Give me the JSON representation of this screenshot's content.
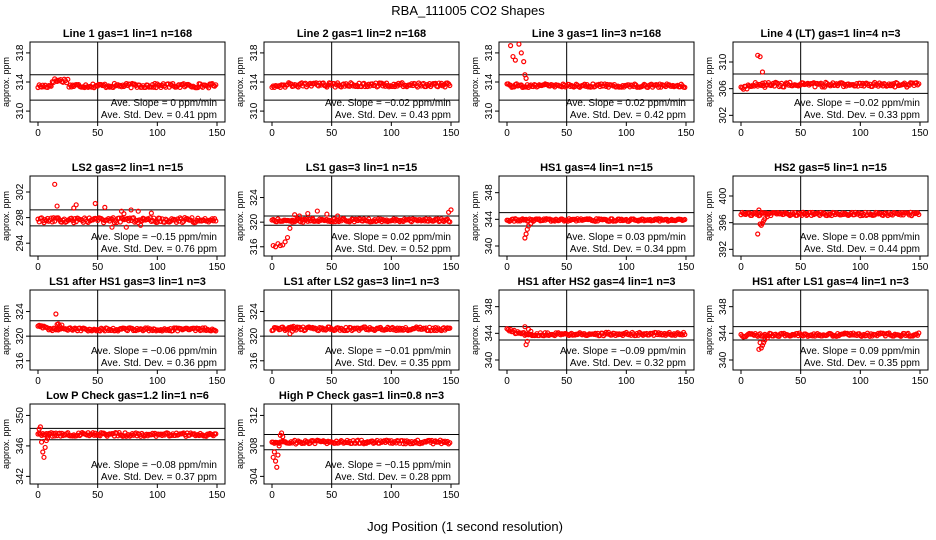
{
  "title": "RBA_111005  CO2 Shapes",
  "xlabel": "Jog Position (1 second resolution)",
  "colors": {
    "points": "#ff0000",
    "axes": "#000000"
  },
  "chart_data": [
    {
      "type": "scatter",
      "title": "Line 1 gas=1 lin=1 n=168",
      "ylabel": "approx. ppm",
      "xlim": [
        0,
        150
      ],
      "xticks": [
        0,
        50,
        100,
        150
      ],
      "ylim": [
        308.5,
        319.5
      ],
      "yticks": [
        310,
        314,
        318
      ],
      "hlines": [
        315,
        311.5
      ],
      "vline": 50,
      "start": 313.4,
      "bump": [
        12,
        25,
        314.2
      ],
      "base": 313.5,
      "noise": 0.3,
      "outliers": [],
      "slope_label": "Ave. Slope = 0 ppm/min",
      "sd_label": "Ave. Std. Dev. = 0.41 ppm"
    },
    {
      "type": "scatter",
      "title": "Line 2 gas=1 lin=2 n=168",
      "ylabel": "approx. ppm",
      "xlim": [
        0,
        150
      ],
      "xticks": [
        0,
        50,
        100,
        150
      ],
      "ylim": [
        308.5,
        319.5
      ],
      "yticks": [
        310,
        314,
        318
      ],
      "hlines": [
        315,
        311.5
      ],
      "vline": 50,
      "start": 313.5,
      "bump": null,
      "base": 313.6,
      "noise": 0.3,
      "outliers": [],
      "slope_label": "Ave. Slope = −0.02 ppm/min",
      "sd_label": "Ave. Std. Dev. = 0.43 ppm"
    },
    {
      "type": "scatter",
      "title": "Line 3 gas=1 lin=3 n=168",
      "ylabel": "approx. ppm",
      "xlim": [
        0,
        150
      ],
      "xticks": [
        0,
        50,
        100,
        150
      ],
      "ylim": [
        308.5,
        319.5
      ],
      "yticks": [
        310,
        314,
        318
      ],
      "hlines": [
        315,
        311.5
      ],
      "vline": 50,
      "start": 313.5,
      "bump": null,
      "base": 313.5,
      "noise": 0.25,
      "outliers": [
        [
          3,
          319
        ],
        [
          5,
          317.5
        ],
        [
          7,
          317
        ],
        [
          10,
          319.2
        ],
        [
          12,
          318
        ],
        [
          14,
          316.8
        ],
        [
          15,
          315
        ],
        [
          16,
          314.5
        ]
      ],
      "slope_label": "Ave. Slope = 0.02 ppm/min",
      "sd_label": "Ave. Std. Dev. = 0.42 ppm"
    },
    {
      "type": "scatter",
      "title": "Line 4 (LT) gas=1 lin=4 n=3",
      "ylabel": "approx. ppm",
      "xlim": [
        0,
        150
      ],
      "xticks": [
        0,
        50,
        100,
        150
      ],
      "ylim": [
        301,
        313
      ],
      "yticks": [
        302,
        306,
        310
      ],
      "hlines": [
        308.2,
        305.3
      ],
      "vline": 50,
      "start": 306,
      "bump": null,
      "base": 306.6,
      "noise": 0.35,
      "outliers": [
        [
          14,
          311
        ],
        [
          16,
          310.8
        ],
        [
          18,
          308.5
        ],
        [
          20,
          306.2
        ]
      ],
      "slope_label": "Ave. Slope = −0.02 ppm/min",
      "sd_label": "Ave. Std. Dev. = 0.33 ppm"
    },
    {
      "type": "scatter",
      "title": "LS2 gas=2 lin=1 n=15",
      "ylabel": "approx. ppm",
      "xlim": [
        0,
        150
      ],
      "xticks": [
        0,
        50,
        100,
        150
      ],
      "ylim": [
        292,
        304.5
      ],
      "yticks": [
        294,
        298,
        302
      ],
      "hlines": [
        299.2,
        296.7
      ],
      "vline": 50,
      "start": 297.6,
      "bump": null,
      "base": 297.6,
      "noise": 0.4,
      "outliers": [
        [
          14,
          303.2
        ],
        [
          16,
          299.8
        ],
        [
          30,
          299.5
        ],
        [
          32,
          300
        ],
        [
          48,
          300.2
        ],
        [
          56,
          299.6
        ],
        [
          62,
          296.5
        ],
        [
          70,
          299
        ],
        [
          72,
          298.6
        ],
        [
          74,
          296.5
        ],
        [
          78,
          299.2
        ],
        [
          84,
          299
        ],
        [
          86,
          296.8
        ],
        [
          88,
          297.9
        ],
        [
          95,
          298.7
        ]
      ],
      "slope_label": "Ave. Slope = −0.15 ppm/min",
      "sd_label": "Ave. Std. Dev. = 0.76 ppm"
    },
    {
      "type": "scatter",
      "title": "LS1 gas=3 lin=1 n=15",
      "ylabel": "approx. ppm",
      "xlim": [
        0,
        150
      ],
      "xticks": [
        0,
        50,
        100,
        150
      ],
      "ylim": [
        314.5,
        327.5
      ],
      "yticks": [
        316,
        320,
        324
      ],
      "hlines": [
        321,
        319.5
      ],
      "vline": 50,
      "start": 320.3,
      "bump": null,
      "base": 320.3,
      "noise": 0.25,
      "outliers": [
        [
          1,
          316.2
        ],
        [
          3,
          316
        ],
        [
          5,
          316.5
        ],
        [
          7,
          316.2
        ],
        [
          9,
          316.3
        ],
        [
          11,
          316.8
        ],
        [
          13,
          317.5
        ],
        [
          15,
          319
        ],
        [
          17,
          320
        ],
        [
          19,
          321.2
        ],
        [
          21,
          320.5
        ],
        [
          23,
          321
        ],
        [
          26,
          320
        ],
        [
          30,
          321.4
        ],
        [
          34,
          320.6
        ],
        [
          38,
          321.8
        ],
        [
          42,
          320.4
        ],
        [
          46,
          321.3
        ],
        [
          50,
          320.2
        ],
        [
          55,
          321
        ],
        [
          60,
          320.6
        ],
        [
          148,
          321.6
        ],
        [
          150,
          322
        ]
      ],
      "slope_label": "Ave. Slope = 0.02 ppm/min",
      "sd_label": "Ave. Std. Dev. = 0.52 ppm"
    },
    {
      "type": "scatter",
      "title": "HS1 gas=4 lin=1 n=15",
      "ylabel": "approx. ppm",
      "xlim": [
        0,
        150
      ],
      "xticks": [
        0,
        50,
        100,
        150
      ],
      "ylim": [
        338.5,
        350.5
      ],
      "yticks": [
        340,
        344,
        348
      ],
      "hlines": [
        345,
        343
      ],
      "vline": 50,
      "start": 343.9,
      "bump": null,
      "base": 343.9,
      "noise": 0.2,
      "outliers": [
        [
          15,
          341.2
        ],
        [
          16,
          341.8
        ],
        [
          17,
          342.5
        ],
        [
          18,
          343
        ],
        [
          20,
          343.4
        ],
        [
          22,
          343.7
        ]
      ],
      "slope_label": "Ave. Slope = 0.03 ppm/min",
      "sd_label": "Ave. Std. Dev. = 0.34 ppm"
    },
    {
      "type": "scatter",
      "title": "HS2 gas=5 lin=1 n=15",
      "ylabel": "approx. ppm",
      "xlim": [
        0,
        150
      ],
      "xticks": [
        0,
        50,
        100,
        150
      ],
      "ylim": [
        391,
        403
      ],
      "yticks": [
        392,
        396,
        400
      ],
      "hlines": [
        397.8,
        395.8
      ],
      "vline": 50,
      "start": 397.3,
      "bump": null,
      "base": 397.3,
      "noise": 0.25,
      "outliers": [
        [
          14,
          394.3
        ],
        [
          15,
          397.9
        ],
        [
          16,
          395.8
        ],
        [
          17,
          395.6
        ],
        [
          18,
          395.9
        ],
        [
          19,
          396.3
        ],
        [
          20,
          396.6
        ],
        [
          22,
          396.9
        ]
      ],
      "slope_label": "Ave. Slope = 0.08 ppm/min",
      "sd_label": "Ave. Std. Dev. = 0.44 ppm"
    },
    {
      "type": "scatter",
      "title": "LS1 after HS1 gas=3 lin=1 n=3",
      "ylabel": "approx. ppm",
      "xlim": [
        0,
        150
      ],
      "xticks": [
        0,
        50,
        100,
        150
      ],
      "ylim": [
        314.5,
        327.5
      ],
      "yticks": [
        316,
        320,
        324
      ],
      "hlines": [
        322.5,
        320
      ],
      "vline": 50,
      "start": 321.8,
      "bump": null,
      "base": 321.1,
      "noise": 0.25,
      "outliers": [
        [
          15,
          323.6
        ],
        [
          16,
          321.9
        ],
        [
          17,
          322
        ],
        [
          18,
          321.7
        ],
        [
          20,
          321.8
        ]
      ],
      "slope_label": "Ave. Slope = −0.06 ppm/min",
      "sd_label": "Ave. Std. Dev. = 0.36 ppm"
    },
    {
      "type": "scatter",
      "title": "LS1 after LS2 gas=3 lin=1 n=3",
      "ylabel": "approx. ppm",
      "xlim": [
        0,
        150
      ],
      "xticks": [
        0,
        50,
        100,
        150
      ],
      "ylim": [
        314.5,
        327.5
      ],
      "yticks": [
        316,
        320,
        324
      ],
      "hlines": [
        322.5,
        320
      ],
      "vline": 50,
      "start": 321.2,
      "bump": null,
      "base": 321.2,
      "noise": 0.3,
      "outliers": [
        [
          15,
          320.4
        ],
        [
          16,
          321.4
        ],
        [
          17,
          320.8
        ],
        [
          18,
          321.6
        ]
      ],
      "slope_label": "Ave. Slope = −0.01 ppm/min",
      "sd_label": "Ave. Std. Dev. = 0.35 ppm"
    },
    {
      "type": "scatter",
      "title": "HS1 after HS2 gas=4 lin=1 n=3",
      "ylabel": "approx. ppm",
      "xlim": [
        0,
        150
      ],
      "xticks": [
        0,
        50,
        100,
        150
      ],
      "ylim": [
        338.5,
        350.5
      ],
      "yticks": [
        340,
        344,
        348
      ],
      "hlines": [
        345,
        343
      ],
      "vline": 50,
      "start": 344.5,
      "bump": null,
      "base": 343.9,
      "noise": 0.25,
      "outliers": [
        [
          15,
          345
        ],
        [
          16,
          342.3
        ],
        [
          17,
          342.8
        ],
        [
          18,
          344.6
        ],
        [
          20,
          344.3
        ]
      ],
      "slope_label": "Ave. Slope = −0.09 ppm/min",
      "sd_label": "Ave. Std. Dev. = 0.32 ppm"
    },
    {
      "type": "scatter",
      "title": "HS1 after LS1 gas=4 lin=1 n=3",
      "ylabel": "approx. ppm",
      "xlim": [
        0,
        150
      ],
      "xticks": [
        0,
        50,
        100,
        150
      ],
      "ylim": [
        338.5,
        350.5
      ],
      "yticks": [
        340,
        344,
        348
      ],
      "hlines": [
        345,
        343
      ],
      "vline": 50,
      "start": 343.7,
      "bump": null,
      "base": 343.8,
      "noise": 0.25,
      "outliers": [
        [
          15,
          341.6
        ],
        [
          16,
          342.6
        ],
        [
          17,
          341.8
        ],
        [
          18,
          342.2
        ],
        [
          19,
          342.6
        ],
        [
          20,
          343
        ],
        [
          22,
          343.3
        ]
      ],
      "slope_label": "Ave. Slope = 0.09 ppm/min",
      "sd_label": "Ave. Std. Dev. = 0.35 ppm"
    },
    {
      "type": "scatter",
      "title": "Low P Check gas=1.2 lin=1 n=6",
      "ylabel": "approx. ppm",
      "xlim": [
        0,
        150
      ],
      "xticks": [
        0,
        50,
        100,
        150
      ],
      "ylim": [
        341,
        351.5
      ],
      "yticks": [
        342,
        346,
        350
      ],
      "hlines": [
        348.3,
        346.8
      ],
      "vline": 50,
      "start": 347.5,
      "bump": null,
      "base": 347.5,
      "noise": 0.25,
      "outliers": [
        [
          1,
          348.2
        ],
        [
          2,
          348.5
        ],
        [
          3,
          346.5
        ],
        [
          4,
          345.2
        ],
        [
          5,
          344.5
        ],
        [
          6,
          345.8
        ],
        [
          7,
          346.7
        ],
        [
          8,
          347
        ]
      ],
      "slope_label": "Ave. Slope = −0.08 ppm/min",
      "sd_label": "Ave. Std. Dev. = 0.37 ppm"
    },
    {
      "type": "scatter",
      "title": "High P Check gas=1 lin=0.8 n=3",
      "ylabel": "approx. ppm",
      "xlim": [
        0,
        150
      ],
      "xticks": [
        0,
        50,
        100,
        150
      ],
      "ylim": [
        303,
        313.5
      ],
      "yticks": [
        304,
        308,
        312
      ],
      "hlines": [
        309.5,
        307.5
      ],
      "vline": 50,
      "start": 308.5,
      "bump": null,
      "base": 308.5,
      "noise": 0.25,
      "outliers": [
        [
          1,
          306.5
        ],
        [
          2,
          307.2
        ],
        [
          3,
          306
        ],
        [
          4,
          305.2
        ],
        [
          5,
          306.8
        ],
        [
          6,
          308
        ],
        [
          7,
          309.4
        ],
        [
          8,
          309.7
        ],
        [
          9,
          309.2
        ]
      ],
      "slope_label": "Ave. Slope = −0.15 ppm/min",
      "sd_label": "Ave. Std. Dev. = 0.28 ppm"
    }
  ]
}
